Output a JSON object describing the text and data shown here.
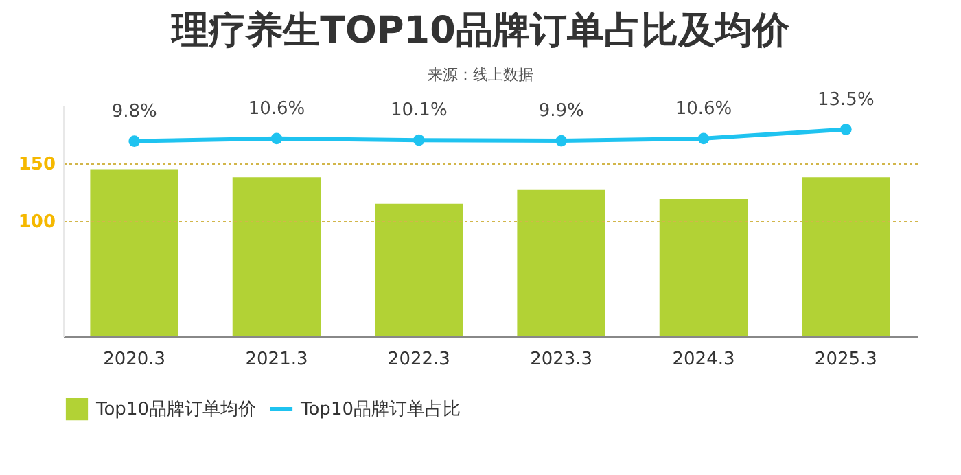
{
  "chart_data": {
    "type": "bar",
    "title": "理疗养生TOP10品牌订单占比及均价",
    "subtitle": "来源：线上数据",
    "categories": [
      "2020.3",
      "2021.3",
      "2022.3",
      "2023.3",
      "2024.3",
      "2025.3"
    ],
    "series": [
      {
        "name": "Top10品牌订单均价",
        "color": "#b2d235",
        "values": [
          145,
          138,
          115,
          127,
          119,
          138
        ]
      },
      {
        "name": "Top10品牌订单占比",
        "type": "line",
        "axis": "y2",
        "color": "#1fc3f0",
        "values": [
          9.8,
          10.6,
          10.1,
          9.9,
          10.6,
          13.5
        ],
        "value_labels": [
          "9.8%",
          "10.6%",
          "10.1%",
          "9.9%",
          "10.6%",
          "13.5%"
        ]
      }
    ],
    "ylim": [
      0,
      200
    ],
    "yticks": [
      100,
      150
    ],
    "y2lim": [
      -52,
      21
    ],
    "grid": "y",
    "legend": "bottom",
    "marker": "circle",
    "line_style": "solid"
  }
}
